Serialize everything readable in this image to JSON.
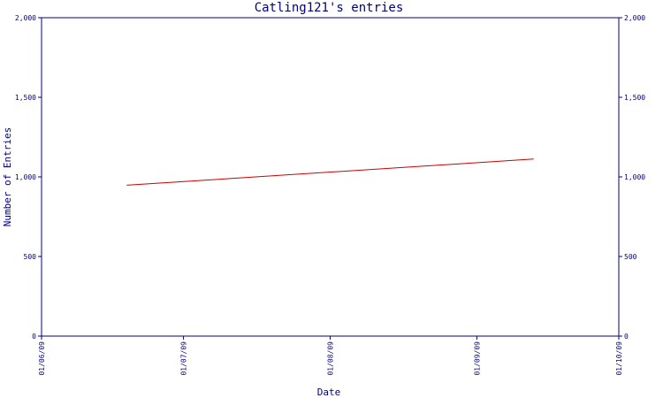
{
  "chart_data": {
    "type": "line",
    "title": "Catling121's entries",
    "xlabel": "Date",
    "ylabel": "Number of Entries",
    "y_ticks": [
      "0",
      "500",
      "1,000",
      "1,500",
      "2,000"
    ],
    "y_tick_values": [
      0,
      500,
      1000,
      1500,
      2000
    ],
    "ylim": [
      0,
      2000
    ],
    "x_ticks": [
      "01/06/09",
      "01/07/09",
      "01/08/09",
      "01/09/09",
      "01/10/09"
    ],
    "x_tick_dates": [
      "2009-06-01",
      "2009-07-01",
      "2009-08-01",
      "2009-09-01",
      "2009-10-01"
    ],
    "xlim": [
      "2009-06-01",
      "2009-10-01"
    ],
    "grid": false,
    "series": [
      {
        "x": [
          "2009-06-19",
          "2009-09-13"
        ],
        "values": [
          948,
          1112
        ]
      }
    ],
    "colors": {
      "axis": "#000080",
      "line": "#cc0000",
      "background": "#ffffff"
    }
  }
}
